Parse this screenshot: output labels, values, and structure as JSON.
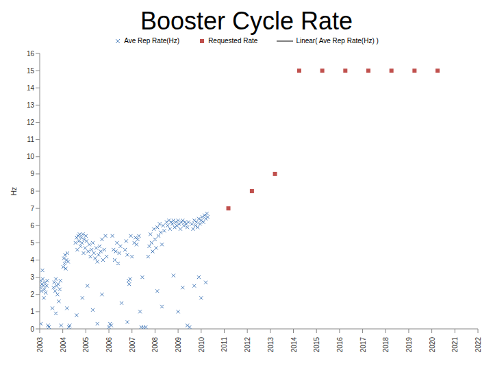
{
  "chart_data": {
    "type": "scatter",
    "title": "Booster Cycle Rate",
    "y_label": "Hz",
    "xlim": [
      2003,
      2022
    ],
    "xticks": [
      2003,
      2004,
      2005,
      2006,
      2007,
      2008,
      2009,
      2010,
      2011,
      2012,
      2013,
      2014,
      2015,
      2016,
      2017,
      2018,
      2019,
      2020,
      2021,
      2022
    ],
    "ylim": [
      0,
      16
    ],
    "yticks": [
      0,
      1,
      2,
      3,
      4,
      5,
      6,
      7,
      8,
      9,
      10,
      11,
      12,
      13,
      14,
      15,
      16
    ],
    "grid": false,
    "legend": "top",
    "series": [
      {
        "name": "Ave Rep Rate(Hz)",
        "type": "scatter",
        "marker": "x",
        "color": "#4f81bd",
        "x": [
          2003.02,
          2003.05,
          2003.08,
          2003.1,
          2003.13,
          2003.16,
          2003.2,
          2003.23,
          2003.26,
          2003.3,
          2003.33,
          2003.36,
          2003.4,
          2003.12,
          2003.05,
          2003.18,
          2003.55,
          2003.6,
          2003.63,
          2003.67,
          2003.7,
          2003.73,
          2003.77,
          2003.8,
          2003.83,
          2003.87,
          2003.9,
          2003.93,
          2003.7,
          2004.02,
          2004.05,
          2004.08,
          2004.1,
          2004.13,
          2004.16,
          2004.2,
          2004.23,
          2004.26,
          2004.3,
          2004.18,
          2004.55,
          2004.6,
          2004.63,
          2004.67,
          2004.7,
          2004.73,
          2004.77,
          2004.8,
          2004.83,
          2004.87,
          2004.9,
          2004.93,
          2004.97,
          2005.0,
          2005.03,
          2005.07,
          2004.85,
          2004.6,
          2005.1,
          2005.15,
          2005.2,
          2005.25,
          2005.3,
          2005.35,
          2005.4,
          2005.45,
          2005.5,
          2005.55,
          2005.6,
          2005.65,
          2005.7,
          2005.75,
          2005.8,
          2005.85,
          2005.9,
          2005.5,
          2005.7,
          2005.3,
          2006.0,
          2006.05,
          2006.1,
          2006.15,
          2006.2,
          2006.25,
          2006.3,
          2006.35,
          2006.4,
          2006.45,
          2006.5,
          2006.55,
          2006.7,
          2006.75,
          2006.8,
          2006.85,
          2006.88,
          2006.92,
          2006.95,
          2007.0,
          2006.8,
          2007.1,
          2007.15,
          2007.2,
          2007.25,
          2007.3,
          2007.35,
          2007.4,
          2007.5,
          2007.45,
          2007.6,
          2007.7,
          2007.75,
          2007.8,
          2007.85,
          2007.9,
          2007.95,
          2008.0,
          2008.05,
          2008.1,
          2008.15,
          2008.2,
          2008.25,
          2008.3,
          2008.35,
          2008.4,
          2008.1,
          2008.3,
          2008.5,
          2008.55,
          2008.6,
          2008.65,
          2008.7,
          2008.75,
          2008.8,
          2008.85,
          2008.9,
          2008.95,
          2009.0,
          2009.05,
          2009.1,
          2009.15,
          2009.2,
          2009.25,
          2009.3,
          2009.35,
          2009.4,
          2009.45,
          2008.8,
          2009.2,
          2009.4,
          2009.5,
          2009.0,
          2009.6,
          2009.65,
          2009.7,
          2009.75,
          2009.8,
          2009.85,
          2009.9,
          2009.95,
          2010.0,
          2010.05,
          2010.1,
          2010.15,
          2010.2,
          2010.25,
          2010.28,
          2009.7,
          2009.9,
          2010.2,
          2010.0
        ],
        "values": [
          2.4,
          2.8,
          2.2,
          2.6,
          2.9,
          2.5,
          2.3,
          2.7,
          2.1,
          2.5,
          2.8,
          0.2,
          0.1,
          3.4,
          0.3,
          1.8,
          1.2,
          2.4,
          2.7,
          2.2,
          2.9,
          2.5,
          2.0,
          2.6,
          1.6,
          2.3,
          2.8,
          0.2,
          0.9,
          3.6,
          4.1,
          3.8,
          4.3,
          3.5,
          4.0,
          4.4,
          3.9,
          0.1,
          0.2,
          1.2,
          5.0,
          5.3,
          4.6,
          5.4,
          5.1,
          5.5,
          4.8,
          5.3,
          5.0,
          5.5,
          4.4,
          5.2,
          4.7,
          5.4,
          5.1,
          2.5,
          1.8,
          0.8,
          4.5,
          4.9,
          4.2,
          4.6,
          5.0,
          4.4,
          4.1,
          4.7,
          3.9,
          4.3,
          4.8,
          4.5,
          5.2,
          4.0,
          4.6,
          5.4,
          4.2,
          0.3,
          2.0,
          1.1,
          0.1,
          0.3,
          0.2,
          5.4,
          4.6,
          4.0,
          4.5,
          5.0,
          3.8,
          4.4,
          4.8,
          1.5,
          4.6,
          5.1,
          4.3,
          2.8,
          2.6,
          2.9,
          5.4,
          4.2,
          0.4,
          5.0,
          5.3,
          4.9,
          5.2,
          5.4,
          1.0,
          0.1,
          0.1,
          3.0,
          0.1,
          4.2,
          4.8,
          5.5,
          5.0,
          4.5,
          5.8,
          5.2,
          4.7,
          5.9,
          5.4,
          6.1,
          5.6,
          4.9,
          6.0,
          5.7,
          2.2,
          1.3,
          6.2,
          6.0,
          6.3,
          5.8,
          6.2,
          6.1,
          6.3,
          5.9,
          6.2,
          6.0,
          6.3,
          6.1,
          5.8,
          6.2,
          6.3,
          6.0,
          6.2,
          6.1,
          5.9,
          6.2,
          3.1,
          2.4,
          0.2,
          0.1,
          1.0,
          6.1,
          5.8,
          6.3,
          6.0,
          6.2,
          5.9,
          6.4,
          6.1,
          6.3,
          6.5,
          6.2,
          6.6,
          6.4,
          6.7,
          6.5,
          2.5,
          3.0,
          2.7,
          1.8
        ]
      },
      {
        "name": "Requested Rate",
        "type": "scatter",
        "marker": "square",
        "color": "#c0504d",
        "x": [
          2011.18,
          2012.2,
          2013.2,
          2014.25,
          2015.25,
          2016.25,
          2017.25,
          2018.25,
          2019.25,
          2020.25
        ],
        "values": [
          7,
          8,
          9,
          15,
          15,
          15,
          15,
          15,
          15,
          15
        ]
      },
      {
        "name": "Linear( Ave Rep Rate(Hz) )",
        "type": "line",
        "line_style": "solid",
        "color": "#4f81bd",
        "x": [],
        "values": []
      }
    ]
  }
}
